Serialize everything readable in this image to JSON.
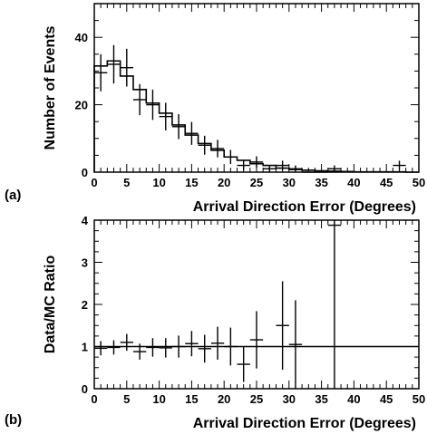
{
  "chart_data": [
    {
      "type": "histogram",
      "panel_label": "(a)",
      "xlabel": "Arrival Direction Error (Degrees)",
      "ylabel": "Number of Events",
      "xlim": [
        0,
        50
      ],
      "ylim": [
        0,
        50
      ],
      "xticks": [
        0,
        5,
        10,
        15,
        20,
        25,
        30,
        35,
        40,
        45,
        50
      ],
      "yticks": [
        0,
        20,
        40
      ],
      "bin_width": 2,
      "series": [
        {
          "style": "step-histogram",
          "x": [
            1,
            3,
            5,
            7,
            9,
            11,
            13,
            15,
            17,
            19,
            21,
            23,
            25,
            27,
            29,
            31,
            33,
            35,
            37,
            39,
            41,
            43,
            45,
            47,
            49
          ],
          "values": [
            31.5,
            33.0,
            28.5,
            24.5,
            20.5,
            17.5,
            14.0,
            11.0,
            8.5,
            6.5,
            4.5,
            3.5,
            2.5,
            2.0,
            1.2,
            0.8,
            0.6,
            0.4,
            0.3,
            0.2,
            0.1,
            0.1,
            0.1,
            0.1,
            0.0
          ]
        },
        {
          "style": "points-with-error-bars",
          "x": [
            1,
            3,
            5,
            7,
            9,
            11,
            13,
            15,
            17,
            19,
            21,
            23,
            25,
            27,
            29,
            31,
            33,
            35,
            37,
            47
          ],
          "values": [
            29.5,
            32.0,
            31.0,
            21.5,
            20.0,
            16.5,
            13.5,
            11.5,
            8.0,
            7.0,
            4.5,
            2.0,
            3.0,
            1.0,
            2.0,
            1.0,
            0.0,
            0.0,
            1.0,
            2.0
          ],
          "errors": [
            5.5,
            5.7,
            5.6,
            4.6,
            4.5,
            4.1,
            3.7,
            3.4,
            2.8,
            2.6,
            2.1,
            1.4,
            1.7,
            1.0,
            1.4,
            1.0,
            0.0,
            0.0,
            1.0,
            1.4
          ]
        }
      ]
    },
    {
      "type": "scatter",
      "panel_label": "(b)",
      "xlabel": "Arrival Direction Error (Degrees)",
      "ylabel": "Data/MC Ratio",
      "xlim": [
        0,
        50
      ],
      "ylim": [
        0,
        4
      ],
      "xticks": [
        0,
        5,
        10,
        15,
        20,
        25,
        30,
        35,
        40,
        45,
        50
      ],
      "yticks": [
        0,
        1,
        2,
        3,
        4
      ],
      "reference_line": 1,
      "series": [
        {
          "style": "points-with-error-bars",
          "x": [
            1,
            3,
            5,
            7,
            9,
            11,
            13,
            15,
            17,
            19,
            21,
            23,
            25,
            29,
            31,
            37
          ],
          "values": [
            0.96,
            0.98,
            1.1,
            0.88,
            0.98,
            0.97,
            1.0,
            1.07,
            0.95,
            1.08,
            1.0,
            0.58,
            1.16,
            1.5,
            1.05,
            3.88
          ],
          "errors": [
            0.17,
            0.17,
            0.2,
            0.19,
            0.22,
            0.23,
            0.26,
            0.3,
            0.33,
            0.39,
            0.45,
            0.42,
            0.68,
            1.05,
            1.05,
            3.88
          ]
        }
      ]
    }
  ]
}
